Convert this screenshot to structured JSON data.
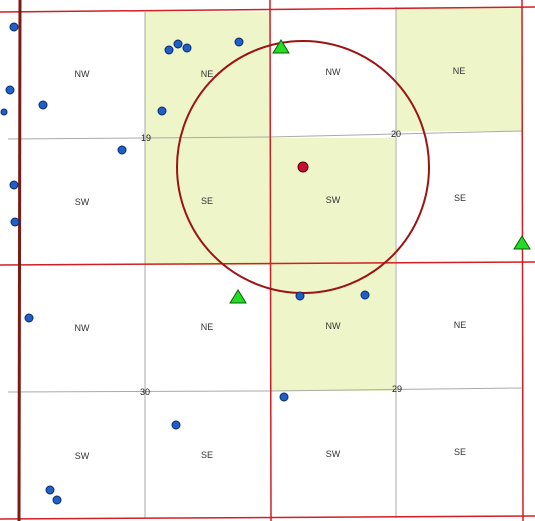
{
  "map": {
    "colors": {
      "background": "#ffffff",
      "highlight_fill": "#eef5c8",
      "section_line": "#d11f26",
      "quarter_line": "#a9a9a9",
      "west_boundary": "#7a1c14",
      "buffer_circle": "#9b1414",
      "center_point": "#c8102e",
      "blue_point": "#1f5fc8",
      "green_triangle": "#22dd22"
    },
    "quarter_labels": [
      {
        "text": "NW",
        "highlighted": false
      },
      {
        "text": "NE",
        "highlighted": true
      },
      {
        "text": "NW",
        "highlighted": false
      },
      {
        "text": "NE",
        "highlighted": true
      },
      {
        "text": "SW",
        "highlighted": false
      },
      {
        "text": "SE",
        "highlighted": true
      },
      {
        "text": "SW",
        "highlighted": true
      },
      {
        "text": "SE",
        "highlighted": false
      },
      {
        "text": "NW",
        "highlighted": false
      },
      {
        "text": "NE",
        "highlighted": false
      },
      {
        "text": "NW",
        "highlighted": true
      },
      {
        "text": "NE",
        "highlighted": false
      },
      {
        "text": "SW",
        "highlighted": false
      },
      {
        "text": "SE",
        "highlighted": false
      },
      {
        "text": "SW",
        "highlighted": false
      },
      {
        "text": "SE",
        "highlighted": false
      }
    ],
    "section_numbers": [
      "19",
      "20",
      "30",
      "29"
    ],
    "legend_symbols": {
      "blue_point_icon": "blue-circle-icon",
      "green_point_icon": "green-triangle-icon",
      "center_icon": "red-dot-icon"
    }
  }
}
